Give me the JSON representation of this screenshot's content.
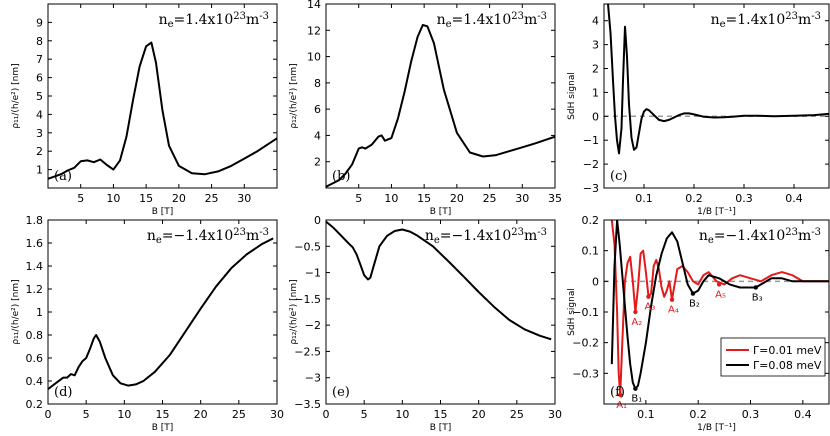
{
  "figure": {
    "colors": {
      "black": "#000000",
      "red": "#e31a1c",
      "dash": "#999999"
    }
  },
  "chart_data": [
    {
      "id": "a",
      "type": "line",
      "panel_label": "(a)",
      "annotation_prefix": "n",
      "annotation_sub": "e",
      "annotation_mid": "=1.4x10",
      "annotation_exp": "23",
      "annotation_unit": "m",
      "annotation_unit_exp": "-3",
      "xlabel": "B [T]",
      "ylabel": "ρ₁₁/(h/e²) [nm]",
      "xlim": [
        0,
        35
      ],
      "ylim": [
        0,
        10
      ],
      "xticks": [
        5,
        10,
        15,
        20,
        25,
        30
      ],
      "xtick_labels": [
        "5",
        "10",
        "15",
        "20",
        "25",
        "30"
      ],
      "yticks": [
        1,
        2,
        3,
        4,
        5,
        6,
        7,
        8,
        9
      ],
      "ytick_labels": [
        "1",
        "2",
        "3",
        "4",
        "5",
        "6",
        "7",
        "8",
        "9"
      ],
      "series": [
        {
          "name": "rho11",
          "color": "#000000",
          "x": [
            0,
            2,
            3,
            4,
            5,
            6,
            7,
            8,
            9,
            10,
            11,
            12,
            13,
            14,
            15,
            15.8,
            16.5,
            17.5,
            18.5,
            20,
            22,
            24,
            26,
            28,
            30,
            32,
            35
          ],
          "y": [
            0.5,
            0.75,
            0.95,
            1.1,
            1.45,
            1.5,
            1.4,
            1.55,
            1.25,
            1.0,
            1.5,
            2.8,
            4.8,
            6.6,
            7.7,
            7.9,
            6.8,
            4.2,
            2.3,
            1.2,
            0.8,
            0.75,
            0.9,
            1.2,
            1.6,
            2.0,
            2.7
          ]
        }
      ]
    },
    {
      "id": "b",
      "type": "line",
      "panel_label": "(b)",
      "annotation_prefix": "n",
      "annotation_sub": "e",
      "annotation_mid": "=1.4x10",
      "annotation_exp": "23",
      "annotation_unit": "m",
      "annotation_unit_exp": "-3",
      "xlabel": "B [T]",
      "ylabel": "ρ₁₂/(h/e²) [nm]",
      "xlim": [
        0,
        35
      ],
      "ylim": [
        0,
        14
      ],
      "xticks": [
        5,
        10,
        15,
        20,
        25,
        30,
        35
      ],
      "xtick_labels": [
        "5",
        "10",
        "15",
        "20",
        "25",
        "30",
        "35"
      ],
      "yticks": [
        2,
        4,
        6,
        8,
        10,
        12,
        14
      ],
      "ytick_labels": [
        "2",
        "4",
        "6",
        "8",
        "10",
        "12",
        "14"
      ],
      "series": [
        {
          "name": "rho12",
          "color": "#000000",
          "x": [
            0,
            2,
            3,
            4,
            5,
            5.5,
            6,
            7,
            8,
            8.5,
            9,
            10,
            11,
            12,
            13,
            14,
            14.8,
            15.5,
            16.5,
            18,
            20,
            22,
            24,
            26,
            28,
            30,
            32,
            35
          ],
          "y": [
            0.1,
            0.6,
            1.1,
            1.8,
            3.0,
            3.1,
            3.0,
            3.3,
            3.9,
            4.0,
            3.6,
            3.8,
            5.3,
            7.3,
            9.6,
            11.5,
            12.4,
            12.3,
            11.0,
            7.5,
            4.2,
            2.7,
            2.4,
            2.5,
            2.8,
            3.1,
            3.4,
            3.9
          ]
        }
      ]
    },
    {
      "id": "c",
      "type": "line",
      "panel_label": "(c)",
      "annotation_prefix": "n",
      "annotation_sub": "e",
      "annotation_mid": "=1.4x10",
      "annotation_exp": "23",
      "annotation_unit": "m",
      "annotation_unit_exp": "-3",
      "xlabel": "1/B [T⁻¹]",
      "ylabel": "SdH signal",
      "xlim": [
        0.02,
        0.47
      ],
      "ylim": [
        -3,
        4.7
      ],
      "xticks": [
        0.1,
        0.2,
        0.3,
        0.4
      ],
      "xtick_labels": [
        "0.1",
        "0.2",
        "0.3",
        "0.4"
      ],
      "yticks": [
        -3,
        -2,
        -1,
        0,
        1,
        2,
        3,
        4
      ],
      "ytick_labels": [
        "−3",
        "−2",
        "−1",
        "0",
        "1",
        "2",
        "3",
        "4"
      ],
      "zero_line": true,
      "series": [
        {
          "name": "sdh",
          "color": "#000000",
          "x": [
            0.028,
            0.033,
            0.038,
            0.042,
            0.046,
            0.05,
            0.055,
            0.058,
            0.062,
            0.066,
            0.07,
            0.075,
            0.08,
            0.085,
            0.09,
            0.095,
            0.1,
            0.105,
            0.11,
            0.115,
            0.12,
            0.13,
            0.14,
            0.15,
            0.16,
            0.17,
            0.18,
            0.19,
            0.2,
            0.22,
            0.24,
            0.26,
            0.28,
            0.3,
            0.33,
            0.36,
            0.4,
            0.44,
            0.47
          ],
          "y": [
            4.7,
            3.5,
            1.5,
            0.0,
            -1.0,
            -1.55,
            -0.5,
            1.5,
            3.75,
            2.5,
            0.5,
            -0.9,
            -1.4,
            -1.3,
            -0.7,
            -0.1,
            0.2,
            0.3,
            0.25,
            0.15,
            0.05,
            -0.15,
            -0.2,
            -0.15,
            -0.05,
            0.05,
            0.12,
            0.12,
            0.08,
            -0.02,
            -0.05,
            -0.04,
            -0.01,
            0.02,
            0.02,
            0.0,
            0.02,
            0.05,
            0.1
          ]
        }
      ]
    },
    {
      "id": "d",
      "type": "line",
      "panel_label": "(d)",
      "annotation_prefix": "n",
      "annotation_sub": "e",
      "annotation_mid": "=−1.4x10",
      "annotation_exp": "23",
      "annotation_unit": "m",
      "annotation_unit_exp": "-3",
      "xlabel": "B [T]",
      "ylabel": "ρ₁₁/(h/e²) [nm]",
      "xlim": [
        0,
        30
      ],
      "ylim": [
        0.2,
        1.8
      ],
      "xticks": [
        0,
        5,
        10,
        15,
        20,
        25,
        30
      ],
      "xtick_labels": [
        "0",
        "5",
        "10",
        "15",
        "20",
        "25",
        "30"
      ],
      "yticks": [
        0.2,
        0.4,
        0.6,
        0.8,
        1.0,
        1.2,
        1.4,
        1.6,
        1.8
      ],
      "ytick_labels": [
        "0.2",
        "0.4",
        "0.6",
        "0.8",
        "1",
        "1.2",
        "1.4",
        "1.6",
        "1.8"
      ],
      "series": [
        {
          "name": "rho11",
          "color": "#000000",
          "x": [
            0,
            1,
            2,
            2.5,
            3,
            3.5,
            4,
            4.5,
            5,
            5.5,
            6,
            6.3,
            6.8,
            7.5,
            8.5,
            9.5,
            10.5,
            11.5,
            12.5,
            14,
            16,
            18,
            20,
            22,
            24,
            26,
            28,
            29.5
          ],
          "y": [
            0.33,
            0.38,
            0.43,
            0.43,
            0.46,
            0.45,
            0.52,
            0.57,
            0.6,
            0.68,
            0.77,
            0.8,
            0.74,
            0.6,
            0.45,
            0.38,
            0.36,
            0.37,
            0.4,
            0.48,
            0.63,
            0.83,
            1.03,
            1.22,
            1.38,
            1.5,
            1.59,
            1.64
          ]
        }
      ]
    },
    {
      "id": "e",
      "type": "line",
      "panel_label": "(e)",
      "annotation_prefix": "n",
      "annotation_sub": "e",
      "annotation_mid": "=−1.4x10",
      "annotation_exp": "23",
      "annotation_unit": "m",
      "annotation_unit_exp": "-3",
      "xlabel": "B [T]",
      "ylabel": "ρ₁₂/(h/e²) [nm]",
      "xlim": [
        0,
        30
      ],
      "ylim": [
        -3.5,
        0
      ],
      "xticks": [
        0,
        5,
        10,
        15,
        20,
        25,
        30
      ],
      "xtick_labels": [
        "0",
        "5",
        "10",
        "15",
        "20",
        "25",
        "30"
      ],
      "yticks": [
        -3.5,
        -3.0,
        -2.5,
        -2.0,
        -1.5,
        -1.0,
        -0.5,
        0
      ],
      "ytick_labels": [
        "−3.5",
        "−3",
        "−2.5",
        "−2",
        "−1.5",
        "−1",
        "−0.5",
        "0"
      ],
      "series": [
        {
          "name": "rho12",
          "color": "#000000",
          "x": [
            0,
            1,
            2,
            3,
            3.5,
            4,
            4.5,
            5,
            5.5,
            5.8,
            6.2,
            7,
            8,
            9,
            10,
            11,
            12,
            14,
            16,
            18,
            20,
            22,
            24,
            26,
            28,
            29.5
          ],
          "y": [
            -0.03,
            -0.15,
            -0.3,
            -0.45,
            -0.52,
            -0.65,
            -0.85,
            -1.05,
            -1.13,
            -1.1,
            -0.9,
            -0.5,
            -0.3,
            -0.21,
            -0.18,
            -0.22,
            -0.3,
            -0.5,
            -0.78,
            -1.07,
            -1.37,
            -1.65,
            -1.9,
            -2.08,
            -2.2,
            -2.27
          ]
        }
      ]
    },
    {
      "id": "f",
      "type": "line",
      "panel_label": "(f)",
      "annotation_prefix": "n",
      "annotation_sub": "e",
      "annotation_mid": "=−1.4x10",
      "annotation_exp": "23",
      "annotation_unit": "m",
      "annotation_unit_exp": "-3",
      "xlabel": "1/B [T⁻¹]",
      "ylabel": "SdH signal",
      "xlim": [
        0.02,
        0.45
      ],
      "ylim": [
        -0.4,
        0.2
      ],
      "xticks": [
        0.1,
        0.2,
        0.3,
        0.4
      ],
      "xtick_labels": [
        "0.1",
        "0.2",
        "0.3",
        "0.4"
      ],
      "yticks": [
        -0.3,
        -0.2,
        -0.1,
        0,
        0.1,
        0.2
      ],
      "ytick_labels": [
        "−0.3",
        "−0.2",
        "−0.1",
        "0",
        "0.1",
        "0.2"
      ],
      "zero_line": true,
      "legend": {
        "placement": "bottom-right",
        "entries": [
          {
            "label": "Γ=0.01 meV",
            "color": "#e31a1c"
          },
          {
            "label": "Γ=0.08 meV",
            "color": "#000000"
          }
        ]
      },
      "series": [
        {
          "name": "Γ=0.01 meV",
          "color": "#e31a1c",
          "x": [
            0.035,
            0.04,
            0.045,
            0.048,
            0.051,
            0.055,
            0.06,
            0.065,
            0.07,
            0.075,
            0.08,
            0.085,
            0.09,
            0.095,
            0.1,
            0.105,
            0.11,
            0.115,
            0.12,
            0.125,
            0.13,
            0.135,
            0.14,
            0.145,
            0.15,
            0.155,
            0.16,
            0.17,
            0.18,
            0.19,
            0.2,
            0.21,
            0.22,
            0.235,
            0.25,
            0.265,
            0.28,
            0.3,
            0.32,
            0.34,
            0.36,
            0.38,
            0.4,
            0.42,
            0.45
          ],
          "y": [
            0.2,
            0.12,
            -0.1,
            -0.3,
            -0.37,
            -0.2,
            0.0,
            0.06,
            0.08,
            0.0,
            -0.1,
            -0.02,
            0.09,
            0.1,
            0.03,
            -0.05,
            -0.04,
            0.05,
            0.07,
            0.04,
            -0.02,
            -0.05,
            -0.03,
            0.0,
            -0.06,
            -0.01,
            0.04,
            0.05,
            0.03,
            0.0,
            -0.01,
            0.02,
            0.03,
            0.0,
            -0.01,
            0.01,
            0.02,
            0.01,
            0.0,
            0.02,
            0.03,
            0.02,
            0.0,
            0.0,
            0.0
          ]
        },
        {
          "name": "Γ=0.08 meV",
          "color": "#000000",
          "x": [
            0.035,
            0.04,
            0.045,
            0.05,
            0.055,
            0.06,
            0.065,
            0.07,
            0.075,
            0.08,
            0.085,
            0.09,
            0.1,
            0.11,
            0.12,
            0.13,
            0.14,
            0.15,
            0.16,
            0.17,
            0.18,
            0.19,
            0.2,
            0.21,
            0.22,
            0.24,
            0.26,
            0.28,
            0.3,
            0.31,
            0.32,
            0.34,
            0.36,
            0.38,
            0.4,
            0.42,
            0.45
          ],
          "y": [
            -0.27,
            0.05,
            0.2,
            0.12,
            0.02,
            -0.08,
            -0.18,
            -0.27,
            -0.33,
            -0.35,
            -0.34,
            -0.3,
            -0.2,
            -0.08,
            0.02,
            0.09,
            0.14,
            0.16,
            0.13,
            0.06,
            -0.01,
            -0.04,
            -0.03,
            0.0,
            0.02,
            0.01,
            -0.01,
            -0.02,
            -0.02,
            -0.02,
            -0.01,
            0.01,
            0.01,
            0.0,
            0.0,
            0.0,
            0.0
          ]
        }
      ],
      "markers": [
        {
          "label": "A₁",
          "x": 0.051,
          "y": -0.37,
          "color": "#e31a1c"
        },
        {
          "label": "A₂",
          "x": 0.08,
          "y": -0.1,
          "color": "#e31a1c"
        },
        {
          "label": "A₃",
          "x": 0.105,
          "y": -0.05,
          "color": "#e31a1c"
        },
        {
          "label": "A₄",
          "x": 0.15,
          "y": -0.06,
          "color": "#e31a1c"
        },
        {
          "label": "A₅",
          "x": 0.24,
          "y": -0.01,
          "color": "#e31a1c"
        },
        {
          "label": "B₁",
          "x": 0.08,
          "y": -0.35,
          "color": "#000000"
        },
        {
          "label": "B₂",
          "x": 0.19,
          "y": -0.04,
          "color": "#000000"
        },
        {
          "label": "B₃",
          "x": 0.31,
          "y": -0.02,
          "color": "#000000"
        }
      ]
    }
  ]
}
